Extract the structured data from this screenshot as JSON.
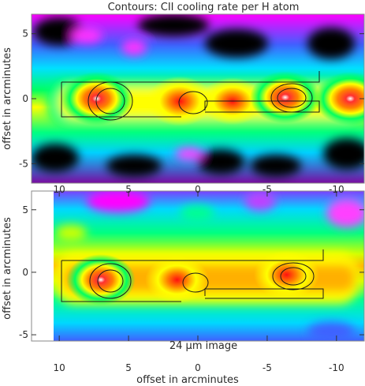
{
  "chart_data": [
    {
      "type": "heatmap",
      "title": "Contours: CII cooling rate per H atom",
      "xlabel": "",
      "ylabel": "offset in arcminutes",
      "xlim": [
        12,
        -12
      ],
      "ylim": [
        -6.5,
        6.5
      ],
      "x_ticks": [],
      "y_ticks": [
        "5",
        "0",
        "-5"
      ],
      "y_tick_values": [
        5,
        0,
        -5
      ],
      "sources": [
        {
          "x": 7.3,
          "y": 0.0,
          "intensity": 1.0
        },
        {
          "x": 1.3,
          "y": -0.2,
          "intensity": 0.85
        },
        {
          "x": -2.5,
          "y": -0.2,
          "intensity": 0.75
        },
        {
          "x": -6.3,
          "y": 0.1,
          "intensity": 0.95
        },
        {
          "x": -11.0,
          "y": 0.0,
          "intensity": 1.0
        }
      ]
    },
    {
      "type": "heatmap",
      "title": "",
      "xlabel": "offset in arcminutes",
      "ylabel": "offset in arcminutes",
      "annotation": "24 μm image",
      "xlim": [
        12,
        -12
      ],
      "ylim": [
        -5.5,
        6.5
      ],
      "x_ticks": [
        "10",
        "5",
        "0",
        "-5",
        "-10"
      ],
      "x_tick_values": [
        10,
        5,
        0,
        -5,
        -10
      ],
      "y_ticks": [
        "5",
        "0",
        "-5"
      ],
      "y_tick_values": [
        5,
        0,
        -5
      ],
      "sources": [
        {
          "x": 7.0,
          "y": -0.6,
          "intensity": 0.9
        },
        {
          "x": 1.5,
          "y": -0.6,
          "intensity": 0.75
        },
        {
          "x": -6.4,
          "y": -0.2,
          "intensity": 0.8
        }
      ]
    }
  ],
  "colors": {
    "background": "#ffffff",
    "colormap": [
      "#000000",
      "#7a0aa0",
      "#ff00ff",
      "#4060ff",
      "#00e0ff",
      "#00ff60",
      "#ffff00",
      "#ff8000",
      "#ff1010",
      "#ffffff"
    ]
  }
}
